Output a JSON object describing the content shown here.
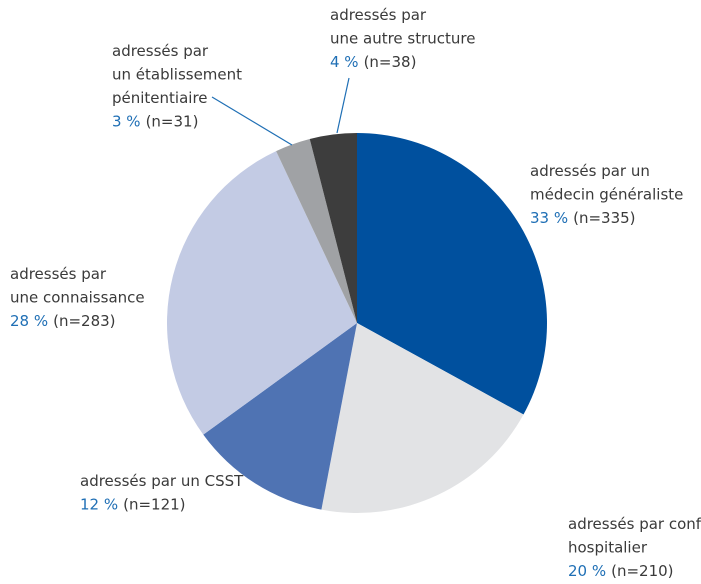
{
  "chart_data": {
    "type": "pie",
    "categories": [
      [
        "adressés par un",
        "médecin généraliste"
      ],
      [
        "adressés par confrère",
        "hospitalier"
      ],
      [
        "adressés par un CSST"
      ],
      [
        "adressés par",
        "une connaissance"
      ],
      [
        "adressés par",
        "un établissement",
        "pénitentiaire"
      ],
      [
        "adressés par",
        "une autre structure"
      ]
    ],
    "values": [
      33,
      20,
      12,
      28,
      3,
      4
    ],
    "value_labels": [
      "33 %",
      "20 %",
      "12 %",
      "28 %",
      "3 %",
      "4 %"
    ],
    "counts": [
      335,
      210,
      121,
      283,
      31,
      38
    ],
    "count_labels": [
      "(n=335)",
      "(n=210)",
      "(n=121)",
      "(n=283)",
      "(n=31)",
      "(n=38)"
    ],
    "colors": [
      "#00509e",
      "#e2e3e5",
      "#4f73b3",
      "#c3cbe4",
      "#a0a2a5",
      "#3d3d3d"
    ]
  }
}
